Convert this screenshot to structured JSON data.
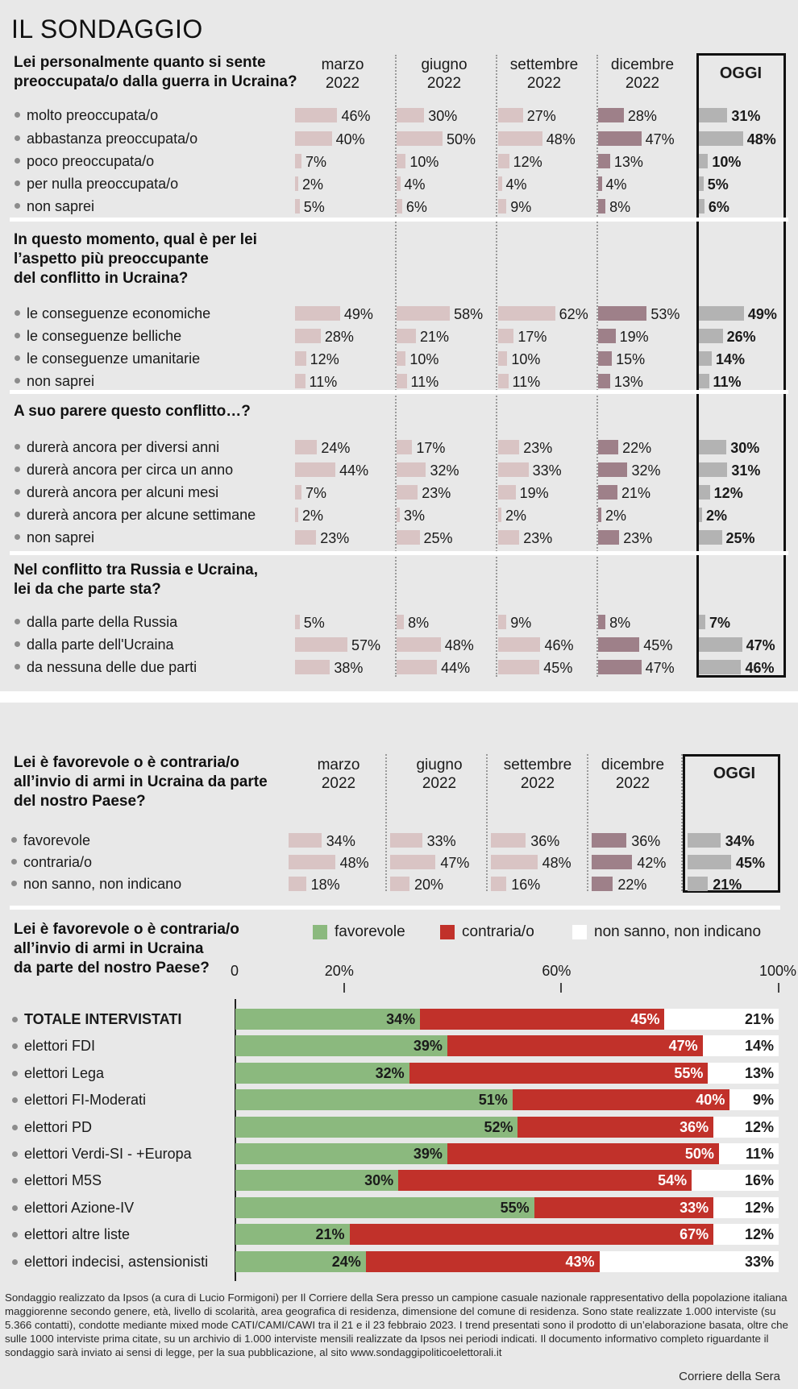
{
  "title": "IL SONDAGGIO",
  "periods": [
    "marzo\n2022",
    "giugno\n2022",
    "settembre\n2022",
    "dicembre\n2022"
  ],
  "oggi_label": "OGGI",
  "colors": {
    "past": "#d9c4c4",
    "dicembre": "#9e8089",
    "oggi": "#b3b3b3",
    "favorevole": "#8bb97e",
    "contraria": "#c1312a",
    "nonsanno": "#ffffff"
  },
  "sections": [
    {
      "question": "Lei personalmente quanto si sente\npreoccupata/o dalla guerra in Ucraina?",
      "rows": [
        {
          "label": "molto preoccupata/o",
          "values": [
            46,
            30,
            27,
            28,
            31
          ]
        },
        {
          "label": "abbastanza preoccupata/o",
          "values": [
            40,
            50,
            48,
            47,
            48
          ]
        },
        {
          "label": "poco preoccupata/o",
          "values": [
            7,
            10,
            12,
            13,
            10
          ]
        },
        {
          "label": "per nulla preoccupata/o",
          "values": [
            2,
            4,
            4,
            4,
            5
          ]
        },
        {
          "label": "non saprei",
          "values": [
            5,
            6,
            9,
            8,
            6
          ]
        }
      ]
    },
    {
      "question": "In questo momento, qual è per lei\nl’aspetto più preoccupante\ndel conflitto in Ucraina?",
      "rows": [
        {
          "label": "le conseguenze economiche",
          "values": [
            49,
            58,
            62,
            53,
            49
          ]
        },
        {
          "label": "le conseguenze belliche",
          "values": [
            28,
            21,
            17,
            19,
            26
          ]
        },
        {
          "label": "le conseguenze umanitarie",
          "values": [
            12,
            10,
            10,
            15,
            14
          ]
        },
        {
          "label": "non saprei",
          "values": [
            11,
            11,
            11,
            13,
            11
          ]
        }
      ]
    },
    {
      "question": "A suo parere questo conflitto…?",
      "rows": [
        {
          "label": "durerà ancora per diversi anni",
          "values": [
            24,
            17,
            23,
            22,
            30
          ]
        },
        {
          "label": "durerà ancora per circa un anno",
          "values": [
            44,
            32,
            33,
            32,
            31
          ]
        },
        {
          "label": "durerà ancora per alcuni mesi",
          "values": [
            7,
            23,
            19,
            21,
            12
          ]
        },
        {
          "label": "durerà ancora per alcune settimane",
          "values": [
            2,
            3,
            2,
            2,
            2
          ]
        },
        {
          "label": "non saprei",
          "values": [
            23,
            25,
            23,
            23,
            25
          ]
        }
      ]
    },
    {
      "question": "Nel conflitto tra Russia e Ucraina,\nlei da che parte sta?",
      "rows": [
        {
          "label": "dalla parte della Russia",
          "values": [
            5,
            8,
            9,
            8,
            7
          ]
        },
        {
          "label": "dalla parte dell'Ucraina",
          "values": [
            57,
            48,
            46,
            45,
            47
          ]
        },
        {
          "label": "da nessuna delle due parti",
          "values": [
            38,
            44,
            45,
            47,
            46
          ]
        }
      ]
    }
  ],
  "arms": {
    "question": "Lei è favorevole o è contraria/o\nall’invio di armi in Ucraina da parte\ndel nostro Paese?",
    "rows": [
      {
        "label": "favorevole",
        "values": [
          34,
          33,
          36,
          36,
          34
        ]
      },
      {
        "label": "contraria/o",
        "values": [
          48,
          47,
          48,
          42,
          45
        ]
      },
      {
        "label": "non sanno, non indicano",
        "values": [
          18,
          20,
          16,
          22,
          21
        ]
      }
    ]
  },
  "chart_data": {
    "type": "bar",
    "stacked": true,
    "orientation": "horizontal",
    "title": "Lei è favorevole o è contraria/o\nall’invio di armi in Ucraina\nda parte del nostro Paese?",
    "legend": [
      "favorevole",
      "contraria/o",
      "non sanno, non indicano"
    ],
    "legend_position": "top-right",
    "axis_ticks": [
      {
        "value": 0,
        "label": "0"
      },
      {
        "value": 20,
        "label": "20%"
      },
      {
        "value": 60,
        "label": "60%"
      },
      {
        "value": 100,
        "label": "100%"
      }
    ],
    "xlim": [
      0,
      100
    ],
    "categories": [
      "TOTALE INTERVISTATI",
      "elettori FDI",
      "elettori Lega",
      "elettori FI-Moderati",
      "elettori PD",
      "elettori Verdi-SI - +Europa",
      "elettori M5S",
      "elettori Azione-IV",
      "elettori altre liste",
      "elettori indecisi, astensionisti"
    ],
    "series": [
      {
        "name": "favorevole",
        "values": [
          34,
          39,
          32,
          51,
          52,
          39,
          30,
          55,
          21,
          24
        ]
      },
      {
        "name": "contraria/o",
        "values": [
          45,
          47,
          55,
          40,
          36,
          50,
          54,
          33,
          67,
          43
        ]
      },
      {
        "name": "non sanno, non indicano",
        "values": [
          21,
          14,
          13,
          9,
          12,
          11,
          16,
          12,
          12,
          33
        ]
      }
    ]
  },
  "footnote": "Sondaggio realizzato da Ipsos (a cura di Lucio Formigoni) per Il Corriere della Sera presso un campione casuale nazionale rappresentativo della popolazione italiana maggiorenne secondo genere, età, livello di scolarità, area geografica di residenza, dimensione del comune di residenza. Sono state realizzate 1.000 interviste (su 5.366 contatti), condotte mediante mixed mode CATI/CAMI/CAWI tra il 21 e il 23 febbraio 2023. I trend presentati sono il prodotto di un’elaborazione basata, oltre che sulle 1000 interviste prima citate, su un archivio di 1.000 interviste mensili realizzate da Ipsos nei periodi indicati. Il documento informativo completo riguardante il sondaggio sarà inviato ai sensi di legge, per la sua pubblicazione, al sito www.sondaggipoliticoelettorali.it",
  "credit": "Corriere della Sera"
}
